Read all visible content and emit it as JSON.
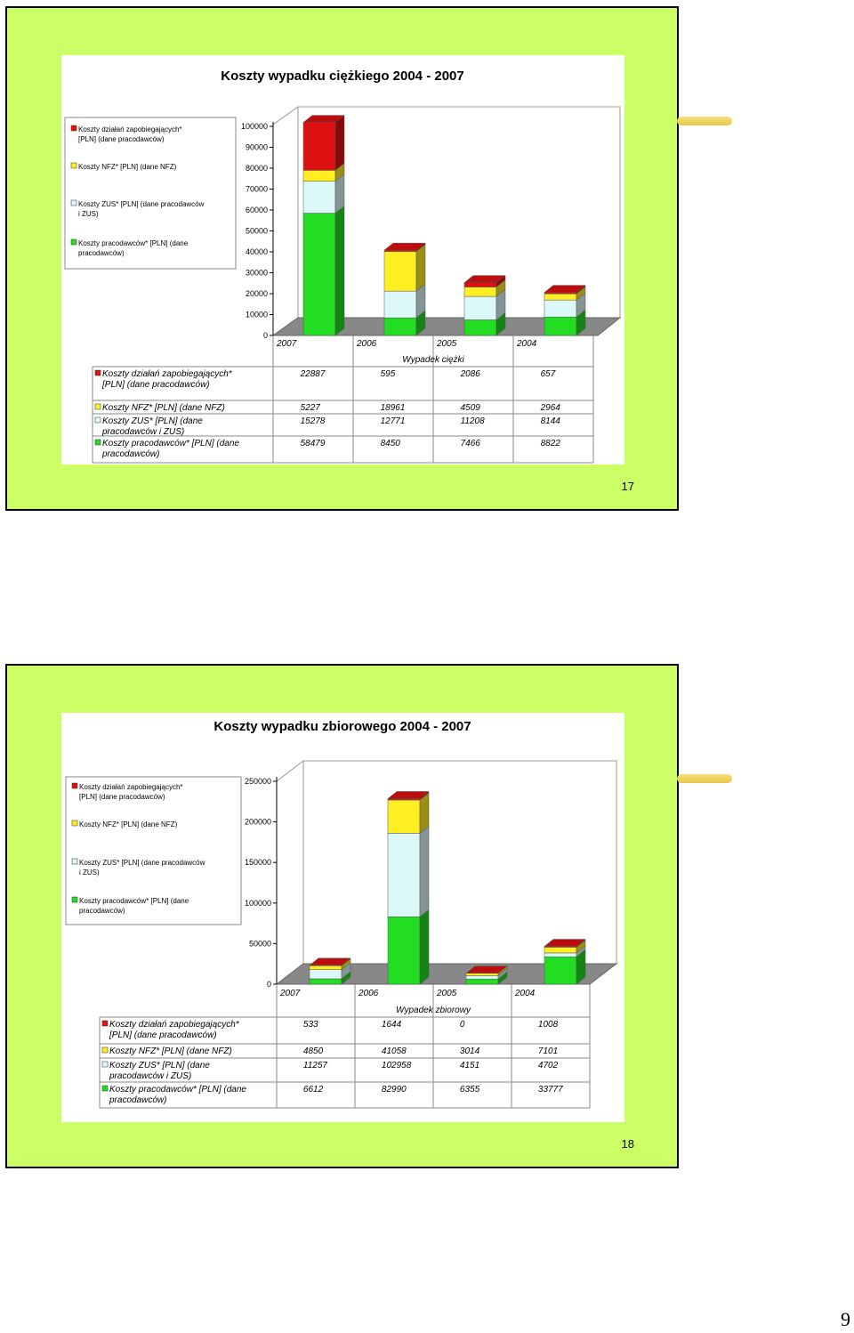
{
  "page_number": "9",
  "colors": {
    "slide_bg": "#ccff66",
    "red": "#dd1111",
    "yellow": "#ffee22",
    "lightblue": "#dcf8f8",
    "green": "#22dd22"
  },
  "slides": [
    {
      "number": "17",
      "chart_data": {
        "type": "bar",
        "stacked": true,
        "three_d": true,
        "title": "Koszty wypadku ciężkiego 2004 - 2007",
        "xlabel": "Wypadek ciężki",
        "categories": [
          "2007",
          "2006",
          "2005",
          "2004"
        ],
        "ylim": [
          0,
          100000
        ],
        "yticks": [
          "0",
          "10000",
          "20000",
          "30000",
          "40000",
          "50000",
          "60000",
          "70000",
          "80000",
          "90000",
          "100000"
        ],
        "legend_position": "left",
        "legend_labels": [
          "Koszty działań zapobiegających* [PLN] (dane pracodawców)",
          "Koszty NFZ* [PLN] (dane NFZ)",
          "Koszty ZUS* [PLN] (dane pracodawców i ZUS)",
          "Koszty pracodawców* [PLN] (dane pracodawców)"
        ],
        "series": [
          {
            "name": "Koszty działań zapobiegających* [PLN] (dane pracodawców)",
            "color": "#dd1111",
            "values": [
              22887,
              595,
              2086,
              657
            ],
            "labels": [
              "22887",
              "595",
              "2086",
              "657"
            ]
          },
          {
            "name": "Koszty NFZ* [PLN] (dane NFZ)",
            "color": "#ffee22",
            "values": [
              5227,
              18961,
              4509,
              2964
            ],
            "labels": [
              "5227",
              "18961",
              "4509",
              "2964"
            ]
          },
          {
            "name": "Koszty ZUS* [PLN] (dane pracodawców i ZUS)",
            "color": "#dcf8f8",
            "values": [
              15278,
              12771,
              11208,
              8144
            ],
            "labels": [
              "15278",
              "12771",
              "11208",
              "8144"
            ]
          },
          {
            "name": "Koszty pracodawców* [PLN] (dane pracodawców)",
            "color": "#22dd22",
            "values": [
              58479,
              8450,
              7466,
              8822
            ],
            "labels": [
              "58479",
              "8450",
              "7466",
              "8822"
            ]
          }
        ],
        "table_row_labels": [
          "Koszty działań zapobiegających* [PLN] (dane pracodawców)",
          "Koszty NFZ* [PLN] (dane NFZ)",
          "Koszty ZUS* [PLN] (dane pracodawców i ZUS)",
          "Koszty pracodawców* [PLN] (dane pracodawców)"
        ]
      }
    },
    {
      "number": "18",
      "chart_data": {
        "type": "bar",
        "stacked": true,
        "three_d": true,
        "title": "Koszty wypadku zbiorowego 2004 - 2007",
        "xlabel": "Wypadek zbiorowy",
        "categories": [
          "2007",
          "2006",
          "2005",
          "2004"
        ],
        "ylim": [
          0,
          250000
        ],
        "yticks": [
          "0",
          "50000",
          "100000",
          "150000",
          "200000",
          "250000"
        ],
        "legend_position": "left",
        "legend_labels": [
          "Koszty działań zapobiegających* [PLN] (dane pracodawców)",
          "Koszty NFZ* [PLN] (dane NFZ)",
          "Koszty ZUS* [PLN] (dane pracodawców i ZUS)",
          "Koszty pracodawców* [PLN] (dane pracodawców)"
        ],
        "series": [
          {
            "name": "Koszty działań zapobiegających* [PLN] (dane pracodawców)",
            "color": "#dd1111",
            "values": [
              533,
              1644,
              0,
              1008
            ],
            "labels": [
              "533",
              "1644",
              "0",
              "1008"
            ]
          },
          {
            "name": "Koszty NFZ* [PLN] (dane NFZ)",
            "color": "#ffee22",
            "values": [
              4850,
              41058,
              3014,
              7101
            ],
            "labels": [
              "4850",
              "41058",
              "3014",
              "7101"
            ]
          },
          {
            "name": "Koszty ZUS* [PLN] (dane pracodawców i ZUS)",
            "color": "#dcf8f8",
            "values": [
              11257,
              102958,
              4151,
              4702
            ],
            "labels": [
              "11257",
              "102958",
              "4151",
              "4702"
            ]
          },
          {
            "name": "Koszty pracodawców* [PLN] (dane pracodawców)",
            "color": "#22dd22",
            "values": [
              6612,
              82990,
              6355,
              33777
            ],
            "labels": [
              "6612",
              "82990",
              "6355",
              "33777"
            ]
          }
        ],
        "table_row_labels": [
          "Koszty działań zapobiegających* [PLN] (dane pracodawców)",
          "Koszty NFZ* [PLN] (dane NFZ)",
          "Koszty ZUS* [PLN] (dane pracodawców i ZUS)",
          "Koszty pracodawców* [PLN] (dane pracodawców)"
        ]
      }
    }
  ]
}
